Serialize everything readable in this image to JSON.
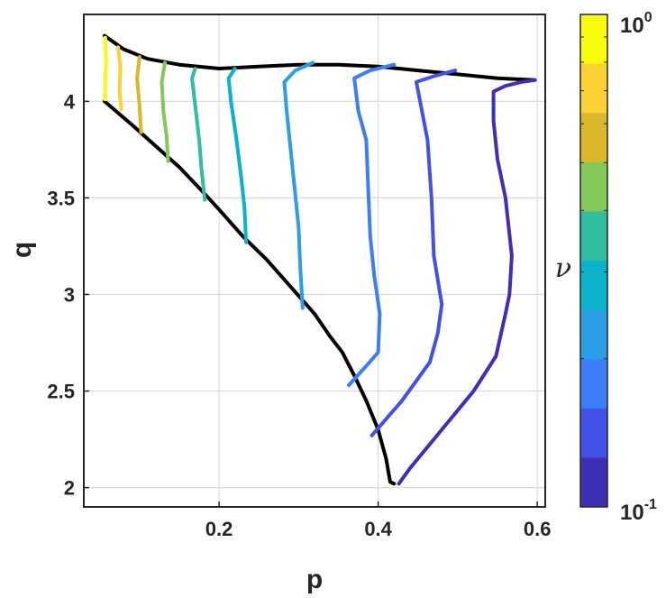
{
  "chart_data": {
    "type": "line",
    "title": "",
    "xlabel": "p",
    "ylabel": "q",
    "xlim": [
      0.03,
      0.61
    ],
    "ylim": [
      1.9,
      4.45
    ],
    "xticks": [
      0.2,
      0.4,
      0.6
    ],
    "xtick_labels": [
      "0.2",
      "0.4",
      "0.6"
    ],
    "yticks": [
      2,
      2.5,
      3,
      3.5,
      4
    ],
    "ytick_labels": [
      "2",
      "2.5",
      "3",
      "3.5",
      "4"
    ],
    "grid": true,
    "boundary": {
      "color": "#000000",
      "top": [
        [
          0.056,
          4.34
        ],
        [
          0.08,
          4.27
        ],
        [
          0.11,
          4.22
        ],
        [
          0.15,
          4.19
        ],
        [
          0.2,
          4.17
        ],
        [
          0.25,
          4.18
        ],
        [
          0.3,
          4.19
        ],
        [
          0.35,
          4.19
        ],
        [
          0.4,
          4.18
        ],
        [
          0.45,
          4.16
        ],
        [
          0.5,
          4.14
        ],
        [
          0.55,
          4.12
        ],
        [
          0.597,
          4.11
        ]
      ],
      "bottom": [
        [
          0.056,
          4.0
        ],
        [
          0.09,
          3.88
        ],
        [
          0.12,
          3.77
        ],
        [
          0.15,
          3.66
        ],
        [
          0.18,
          3.53
        ],
        [
          0.2,
          3.44
        ],
        [
          0.23,
          3.3
        ],
        [
          0.26,
          3.18
        ],
        [
          0.29,
          3.04
        ],
        [
          0.32,
          2.9
        ],
        [
          0.34,
          2.78
        ],
        [
          0.355,
          2.7
        ],
        [
          0.37,
          2.58
        ],
        [
          0.385,
          2.45
        ],
        [
          0.4,
          2.3
        ],
        [
          0.41,
          2.15
        ],
        [
          0.415,
          2.03
        ],
        [
          0.42,
          2.02
        ]
      ]
    },
    "colorbar": {
      "label": "ν",
      "scale": "log",
      "range": [
        0.1,
        1
      ],
      "top_label_base": "10",
      "top_label_exp": "0",
      "bottom_label_base": "10",
      "bottom_label_exp": "-1",
      "colors": [
        "#F9FB0E",
        "#FDD133",
        "#DAB72B",
        "#84C85A",
        "#31BD9F",
        "#0BB2CB",
        "#2C9EE6",
        "#3C7DFA",
        "#4251E6",
        "#3D2FB6"
      ]
    },
    "series": [
      {
        "color": "#F9FB0E",
        "points": [
          [
            0.057,
            4.33
          ],
          [
            0.058,
            4.2
          ],
          [
            0.057,
            4.1
          ],
          [
            0.057,
            4.01
          ]
        ]
      },
      {
        "color": "#FDD133",
        "points": [
          [
            0.073,
            4.28
          ],
          [
            0.076,
            4.18
          ],
          [
            0.075,
            4.05
          ],
          [
            0.077,
            3.96
          ]
        ]
      },
      {
        "color": "#DAB72B",
        "points": [
          [
            0.1,
            4.23
          ],
          [
            0.097,
            4.12
          ],
          [
            0.1,
            3.98
          ],
          [
            0.102,
            3.84
          ]
        ]
      },
      {
        "color": "#84C85A",
        "points": [
          [
            0.132,
            4.2
          ],
          [
            0.128,
            4.1
          ],
          [
            0.13,
            3.95
          ],
          [
            0.134,
            3.82
          ],
          [
            0.136,
            3.69
          ]
        ]
      },
      {
        "color": "#31BD9F",
        "points": [
          [
            0.17,
            4.17
          ],
          [
            0.166,
            4.12
          ],
          [
            0.17,
            3.98
          ],
          [
            0.175,
            3.8
          ],
          [
            0.178,
            3.65
          ],
          [
            0.182,
            3.49
          ]
        ]
      },
      {
        "color": "#0BB2CB",
        "points": [
          [
            0.22,
            4.17
          ],
          [
            0.212,
            4.12
          ],
          [
            0.215,
            4.0
          ],
          [
            0.222,
            3.8
          ],
          [
            0.228,
            3.6
          ],
          [
            0.232,
            3.45
          ],
          [
            0.234,
            3.27
          ]
        ]
      },
      {
        "color": "#2C9EE6",
        "points": [
          [
            0.318,
            4.2
          ],
          [
            0.296,
            4.16
          ],
          [
            0.282,
            4.1
          ],
          [
            0.285,
            3.95
          ],
          [
            0.29,
            3.75
          ],
          [
            0.295,
            3.55
          ],
          [
            0.3,
            3.35
          ],
          [
            0.302,
            3.15
          ],
          [
            0.305,
            2.93
          ]
        ]
      },
      {
        "color": "#3C7DFA",
        "points": [
          [
            0.42,
            4.19
          ],
          [
            0.39,
            4.16
          ],
          [
            0.37,
            4.12
          ],
          [
            0.375,
            3.95
          ],
          [
            0.385,
            3.8
          ],
          [
            0.388,
            3.5
          ],
          [
            0.39,
            3.3
          ],
          [
            0.395,
            3.1
          ],
          [
            0.402,
            2.9
          ],
          [
            0.4,
            2.7
          ],
          [
            0.385,
            2.63
          ],
          [
            0.363,
            2.53
          ]
        ]
      },
      {
        "color": "#4251E6",
        "points": [
          [
            0.497,
            4.16
          ],
          [
            0.47,
            4.13
          ],
          [
            0.448,
            4.1
          ],
          [
            0.455,
            3.95
          ],
          [
            0.462,
            3.8
          ],
          [
            0.467,
            3.5
          ],
          [
            0.47,
            3.2
          ],
          [
            0.48,
            2.95
          ],
          [
            0.475,
            2.8
          ],
          [
            0.465,
            2.65
          ],
          [
            0.43,
            2.45
          ],
          [
            0.392,
            2.27
          ]
        ]
      },
      {
        "color": "#3D2FB6",
        "points": [
          [
            0.597,
            4.11
          ],
          [
            0.58,
            4.1
          ],
          [
            0.56,
            4.08
          ],
          [
            0.545,
            4.05
          ],
          [
            0.545,
            3.9
          ],
          [
            0.55,
            3.7
          ],
          [
            0.56,
            3.5
          ],
          [
            0.568,
            3.2
          ],
          [
            0.565,
            3.0
          ],
          [
            0.56,
            2.9
          ],
          [
            0.548,
            2.68
          ],
          [
            0.52,
            2.5
          ],
          [
            0.48,
            2.3
          ],
          [
            0.44,
            2.1
          ],
          [
            0.426,
            2.02
          ]
        ]
      }
    ]
  }
}
